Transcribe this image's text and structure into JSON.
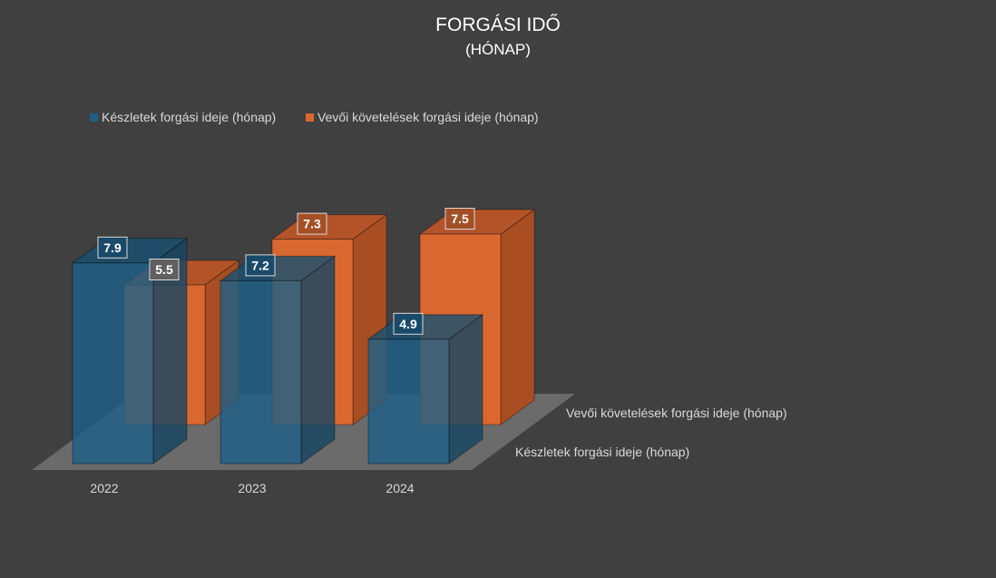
{
  "chart_data": {
    "type": "bar",
    "variant": "3d-column",
    "title": "FORGÁSI IDŐ",
    "subtitle": "(HÓNAP)",
    "categories": [
      "2022",
      "2023",
      "2024"
    ],
    "series": [
      {
        "name": "Készletek forgási ideje (hónap)",
        "values": [
          7.9,
          7.2,
          4.9
        ],
        "color": "#1f5f86"
      },
      {
        "name": "Vevői követelések forgási ideje (hónap)",
        "values": [
          5.5,
          7.3,
          7.5
        ],
        "color": "#d96830"
      }
    ],
    "data_labels": true,
    "legend_position": "top-left",
    "grid": false
  },
  "colors": {
    "background": "#404040",
    "floor": "#6b6b6b",
    "blue_front": "#1f5f86",
    "blue_top": "#1a4f70",
    "blue_side": "#174663",
    "orange_front": "#d96830",
    "orange_top": "#b35428",
    "orange_side": "#a84e22"
  }
}
